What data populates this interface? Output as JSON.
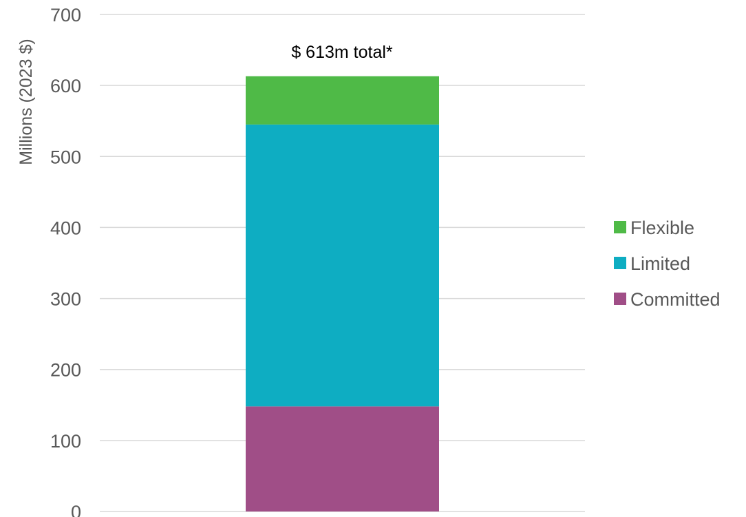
{
  "chart_data": {
    "type": "bar",
    "stacked": true,
    "categories": [
      ""
    ],
    "series": [
      {
        "name": "Committed",
        "values": [
          148
        ],
        "color": "#a04e87"
      },
      {
        "name": "Limited",
        "values": [
          397
        ],
        "color": "#0eadc2"
      },
      {
        "name": "Flexible",
        "values": [
          68
        ],
        "color": "#4fba47"
      }
    ],
    "legend_order": [
      "Flexible",
      "Limited",
      "Committed"
    ],
    "annotation": "$ 613m total*",
    "ylabel": "Millions (2023 $)",
    "xlabel": "",
    "ylim": [
      0,
      700
    ],
    "yticks": [
      0,
      100,
      200,
      300,
      400,
      500,
      600,
      700
    ],
    "grid": true,
    "legend_position": "right"
  }
}
